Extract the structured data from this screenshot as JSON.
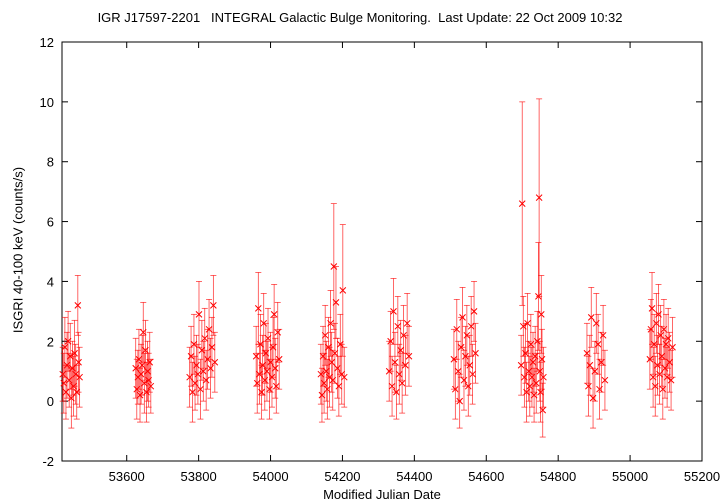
{
  "chart_data": {
    "type": "scatter",
    "title": "IGR J17597-2201   INTEGRAL Galactic Bulge Monitoring.  Last Update: 22 Oct 2009 10:32",
    "xlabel": "Modified Julian Date",
    "ylabel": "ISGRI 40-100 keV (counts/s)",
    "xlim": [
      53420,
      55200
    ],
    "ylim": [
      -2,
      12
    ],
    "x_ticks": [
      53600,
      53800,
      54000,
      54200,
      54400,
      54600,
      54800,
      55000,
      55200
    ],
    "y_ticks": [
      -2,
      0,
      2,
      4,
      6,
      8,
      10,
      12
    ],
    "grid": false,
    "marker": "x",
    "color": "#ff0000",
    "series": [
      {
        "points": [
          {
            "x": 53422,
            "y": 0.9,
            "err": 0.9
          },
          {
            "x": 53425,
            "y": 0.6,
            "err": 1.0
          },
          {
            "x": 53428,
            "y": 1.8,
            "err": 1.0
          },
          {
            "x": 53431,
            "y": 0.3,
            "err": 0.9
          },
          {
            "x": 53434,
            "y": 1.2,
            "err": 1.1
          },
          {
            "x": 53437,
            "y": 2.0,
            "err": 1.0
          },
          {
            "x": 53440,
            "y": 0.7,
            "err": 0.9
          },
          {
            "x": 53443,
            "y": 1.5,
            "err": 1.1
          },
          {
            "x": 53446,
            "y": 0.1,
            "err": 1.0
          },
          {
            "x": 53449,
            "y": 1.1,
            "err": 0.9
          },
          {
            "x": 53452,
            "y": 0.5,
            "err": 1.0
          },
          {
            "x": 53455,
            "y": 1.6,
            "err": 1.1
          },
          {
            "x": 53458,
            "y": 0.9,
            "err": 1.0
          },
          {
            "x": 53461,
            "y": 0.3,
            "err": 0.9
          },
          {
            "x": 53464,
            "y": 3.2,
            "err": 1.0
          },
          {
            "x": 53466,
            "y": 1.3,
            "err": 1.0
          },
          {
            "x": 53469,
            "y": 0.8,
            "err": 1.0
          },
          {
            "x": 53625,
            "y": 1.1,
            "err": 1.0
          },
          {
            "x": 53628,
            "y": 0.4,
            "err": 1.0
          },
          {
            "x": 53631,
            "y": 0.8,
            "err": 0.9
          },
          {
            "x": 53634,
            "y": 1.4,
            "err": 1.0
          },
          {
            "x": 53637,
            "y": 0.2,
            "err": 0.9
          },
          {
            "x": 53640,
            "y": 0.9,
            "err": 1.0
          },
          {
            "x": 53643,
            "y": 1.2,
            "err": 1.0
          },
          {
            "x": 53646,
            "y": 2.3,
            "err": 1.0
          },
          {
            "x": 53649,
            "y": 0.6,
            "err": 1.0
          },
          {
            "x": 53652,
            "y": 1.7,
            "err": 1.0
          },
          {
            "x": 53655,
            "y": 0.3,
            "err": 1.0
          },
          {
            "x": 53658,
            "y": 1.0,
            "err": 1.0
          },
          {
            "x": 53661,
            "y": 0.7,
            "err": 0.9
          },
          {
            "x": 53664,
            "y": 1.3,
            "err": 1.0
          },
          {
            "x": 53667,
            "y": 0.5,
            "err": 0.9
          },
          {
            "x": 53775,
            "y": 0.8,
            "err": 1.0
          },
          {
            "x": 53779,
            "y": 1.5,
            "err": 1.0
          },
          {
            "x": 53783,
            "y": 0.3,
            "err": 1.0
          },
          {
            "x": 53787,
            "y": 1.9,
            "err": 1.0
          },
          {
            "x": 53790,
            "y": 0.6,
            "err": 0.9
          },
          {
            "x": 53794,
            "y": 1.2,
            "err": 1.0
          },
          {
            "x": 53798,
            "y": 0.9,
            "err": 1.0
          },
          {
            "x": 53801,
            "y": 2.9,
            "err": 1.1
          },
          {
            "x": 53805,
            "y": 0.4,
            "err": 1.0
          },
          {
            "x": 53809,
            "y": 1.7,
            "err": 1.0
          },
          {
            "x": 53813,
            "y": 1.0,
            "err": 1.0
          },
          {
            "x": 53817,
            "y": 2.1,
            "err": 1.0
          },
          {
            "x": 53821,
            "y": 0.7,
            "err": 1.0
          },
          {
            "x": 53825,
            "y": 1.4,
            "err": 1.0
          },
          {
            "x": 53829,
            "y": 2.4,
            "err": 1.0
          },
          {
            "x": 53833,
            "y": 1.1,
            "err": 1.0
          },
          {
            "x": 53837,
            "y": 1.8,
            "err": 1.0
          },
          {
            "x": 53841,
            "y": 3.2,
            "err": 1.0
          },
          {
            "x": 53845,
            "y": 1.3,
            "err": 1.0
          },
          {
            "x": 53960,
            "y": 1.5,
            "err": 1.0
          },
          {
            "x": 53963,
            "y": 0.6,
            "err": 1.0
          },
          {
            "x": 53966,
            "y": 3.1,
            "err": 1.2
          },
          {
            "x": 53969,
            "y": 0.9,
            "err": 1.0
          },
          {
            "x": 53972,
            "y": 1.9,
            "err": 1.0
          },
          {
            "x": 53975,
            "y": 0.3,
            "err": 0.9
          },
          {
            "x": 53978,
            "y": 1.2,
            "err": 1.0
          },
          {
            "x": 53981,
            "y": 2.6,
            "err": 1.0
          },
          {
            "x": 53984,
            "y": 0.7,
            "err": 1.0
          },
          {
            "x": 53987,
            "y": 1.6,
            "err": 1.0
          },
          {
            "x": 53990,
            "y": 1.0,
            "err": 1.0
          },
          {
            "x": 53993,
            "y": 2.1,
            "err": 1.0
          },
          {
            "x": 53997,
            "y": 0.4,
            "err": 1.0
          },
          {
            "x": 54000,
            "y": 1.3,
            "err": 1.0
          },
          {
            "x": 54004,
            "y": 0.8,
            "err": 1.0
          },
          {
            "x": 54007,
            "y": 1.8,
            "err": 1.0
          },
          {
            "x": 54010,
            "y": 2.9,
            "err": 1.0
          },
          {
            "x": 54013,
            "y": 1.1,
            "err": 1.0
          },
          {
            "x": 54016,
            "y": 0.5,
            "err": 0.9
          },
          {
            "x": 54020,
            "y": 2.3,
            "err": 1.0
          },
          {
            "x": 54024,
            "y": 1.4,
            "err": 1.0
          },
          {
            "x": 54140,
            "y": 0.9,
            "err": 1.0
          },
          {
            "x": 54143,
            "y": 0.2,
            "err": 0.9
          },
          {
            "x": 54146,
            "y": 1.5,
            "err": 1.0
          },
          {
            "x": 54149,
            "y": 0.6,
            "err": 1.0
          },
          {
            "x": 54152,
            "y": 2.2,
            "err": 1.0
          },
          {
            "x": 54155,
            "y": 1.0,
            "err": 1.0
          },
          {
            "x": 54158,
            "y": 0.4,
            "err": 1.0
          },
          {
            "x": 54161,
            "y": 1.8,
            "err": 1.0
          },
          {
            "x": 54164,
            "y": 0.8,
            "err": 1.0
          },
          {
            "x": 54167,
            "y": 2.6,
            "err": 1.1
          },
          {
            "x": 54170,
            "y": 1.3,
            "err": 1.0
          },
          {
            "x": 54173,
            "y": 0.7,
            "err": 1.0
          },
          {
            "x": 54176,
            "y": 4.5,
            "err": 2.1
          },
          {
            "x": 54179,
            "y": 1.6,
            "err": 1.0
          },
          {
            "x": 54182,
            "y": 3.3,
            "err": 1.2
          },
          {
            "x": 54186,
            "y": 1.1,
            "err": 1.0
          },
          {
            "x": 54190,
            "y": 0.5,
            "err": 1.0
          },
          {
            "x": 54194,
            "y": 1.9,
            "err": 1.0
          },
          {
            "x": 54198,
            "y": 0.9,
            "err": 1.0
          },
          {
            "x": 54201,
            "y": 3.7,
            "err": 2.2
          },
          {
            "x": 54205,
            "y": 0.8,
            "err": 1.0
          },
          {
            "x": 54330,
            "y": 1.0,
            "err": 1.0
          },
          {
            "x": 54334,
            "y": 2.0,
            "err": 1.0
          },
          {
            "x": 54338,
            "y": 0.5,
            "err": 1.0
          },
          {
            "x": 54342,
            "y": 3.0,
            "err": 1.1
          },
          {
            "x": 54346,
            "y": 1.3,
            "err": 1.0
          },
          {
            "x": 54350,
            "y": 0.3,
            "err": 0.9
          },
          {
            "x": 54354,
            "y": 2.5,
            "err": 1.0
          },
          {
            "x": 54358,
            "y": 0.9,
            "err": 1.0
          },
          {
            "x": 54362,
            "y": 1.7,
            "err": 1.0
          },
          {
            "x": 54366,
            "y": 0.6,
            "err": 1.0
          },
          {
            "x": 54370,
            "y": 2.2,
            "err": 1.0
          },
          {
            "x": 54375,
            "y": 1.2,
            "err": 1.0
          },
          {
            "x": 54380,
            "y": 2.6,
            "err": 1.0
          },
          {
            "x": 54385,
            "y": 1.5,
            "err": 1.0
          },
          {
            "x": 54510,
            "y": 1.4,
            "err": 1.0
          },
          {
            "x": 54514,
            "y": 0.4,
            "err": 1.0
          },
          {
            "x": 54518,
            "y": 2.4,
            "err": 1.0
          },
          {
            "x": 54522,
            "y": 1.0,
            "err": 1.0
          },
          {
            "x": 54526,
            "y": 0.0,
            "err": 0.9
          },
          {
            "x": 54530,
            "y": 1.8,
            "err": 1.0
          },
          {
            "x": 54534,
            "y": 2.8,
            "err": 1.0
          },
          {
            "x": 54538,
            "y": 0.7,
            "err": 1.0
          },
          {
            "x": 54542,
            "y": 1.5,
            "err": 1.0
          },
          {
            "x": 54546,
            "y": 2.2,
            "err": 1.0
          },
          {
            "x": 54550,
            "y": 0.5,
            "err": 1.0
          },
          {
            "x": 54554,
            "y": 1.2,
            "err": 1.0
          },
          {
            "x": 54558,
            "y": 2.5,
            "err": 1.0
          },
          {
            "x": 54562,
            "y": 0.9,
            "err": 1.0
          },
          {
            "x": 54566,
            "y": 3.0,
            "err": 1.0
          },
          {
            "x": 54570,
            "y": 1.6,
            "err": 1.0
          },
          {
            "x": 54697,
            "y": 1.2,
            "err": 1.0
          },
          {
            "x": 54700,
            "y": 6.6,
            "err": 3.4
          },
          {
            "x": 54703,
            "y": 2.5,
            "err": 1.0
          },
          {
            "x": 54706,
            "y": 0.8,
            "err": 1.0
          },
          {
            "x": 54709,
            "y": 1.6,
            "err": 1.0
          },
          {
            "x": 54712,
            "y": 0.3,
            "err": 1.0
          },
          {
            "x": 54715,
            "y": 2.6,
            "err": 1.0
          },
          {
            "x": 54718,
            "y": 1.0,
            "err": 1.0
          },
          {
            "x": 54721,
            "y": 0.5,
            "err": 1.0
          },
          {
            "x": 54724,
            "y": 1.9,
            "err": 1.0
          },
          {
            "x": 54727,
            "y": 0.8,
            "err": 1.0
          },
          {
            "x": 54730,
            "y": 1.3,
            "err": 1.0
          },
          {
            "x": 54733,
            "y": 0.2,
            "err": 0.9
          },
          {
            "x": 54736,
            "y": 1.5,
            "err": 1.0
          },
          {
            "x": 54739,
            "y": 0.6,
            "err": 1.0
          },
          {
            "x": 54742,
            "y": 2.0,
            "err": 1.0
          },
          {
            "x": 54745,
            "y": 3.5,
            "err": 1.8
          },
          {
            "x": 54747,
            "y": 6.8,
            "err": 3.3
          },
          {
            "x": 54749,
            "y": 1.0,
            "err": 1.0
          },
          {
            "x": 54751,
            "y": 0.3,
            "err": 1.0
          },
          {
            "x": 54753,
            "y": 2.9,
            "err": 1.3
          },
          {
            "x": 54755,
            "y": 1.4,
            "err": 1.0
          },
          {
            "x": 54757,
            "y": -0.3,
            "err": 0.9
          },
          {
            "x": 54759,
            "y": 0.8,
            "err": 1.0
          },
          {
            "x": 54880,
            "y": 1.6,
            "err": 1.0
          },
          {
            "x": 54884,
            "y": 0.5,
            "err": 1.0
          },
          {
            "x": 54888,
            "y": 1.2,
            "err": 1.0
          },
          {
            "x": 54892,
            "y": 2.8,
            "err": 1.0
          },
          {
            "x": 54897,
            "y": 0.1,
            "err": 1.0
          },
          {
            "x": 54902,
            "y": 1.0,
            "err": 1.0
          },
          {
            "x": 54906,
            "y": 2.6,
            "err": 1.0
          },
          {
            "x": 54911,
            "y": 1.9,
            "err": 1.0
          },
          {
            "x": 54915,
            "y": 0.4,
            "err": 1.0
          },
          {
            "x": 54920,
            "y": 1.3,
            "err": 1.0
          },
          {
            "x": 54925,
            "y": 2.2,
            "err": 1.0
          },
          {
            "x": 54930,
            "y": 0.7,
            "err": 1.0
          },
          {
            "x": 55055,
            "y": 1.4,
            "err": 1.0
          },
          {
            "x": 55058,
            "y": 2.4,
            "err": 1.0
          },
          {
            "x": 55061,
            "y": 3.1,
            "err": 1.2
          },
          {
            "x": 55064,
            "y": 0.8,
            "err": 1.0
          },
          {
            "x": 55067,
            "y": 1.9,
            "err": 1.0
          },
          {
            "x": 55070,
            "y": 0.5,
            "err": 1.0
          },
          {
            "x": 55073,
            "y": 2.6,
            "err": 1.0
          },
          {
            "x": 55076,
            "y": 1.2,
            "err": 1.0
          },
          {
            "x": 55079,
            "y": 2.9,
            "err": 1.0
          },
          {
            "x": 55082,
            "y": 0.9,
            "err": 1.0
          },
          {
            "x": 55085,
            "y": 2.2,
            "err": 1.0
          },
          {
            "x": 55088,
            "y": 1.5,
            "err": 1.0
          },
          {
            "x": 55091,
            "y": 0.4,
            "err": 1.0
          },
          {
            "x": 55094,
            "y": 2.4,
            "err": 1.0
          },
          {
            "x": 55097,
            "y": 1.1,
            "err": 1.0
          },
          {
            "x": 55100,
            "y": 1.9,
            "err": 1.0
          },
          {
            "x": 55103,
            "y": 0.8,
            "err": 1.0
          },
          {
            "x": 55106,
            "y": 2.1,
            "err": 1.0
          },
          {
            "x": 55110,
            "y": 1.3,
            "err": 1.0
          },
          {
            "x": 55114,
            "y": 0.7,
            "err": 1.0
          },
          {
            "x": 55118,
            "y": 1.8,
            "err": 1.0
          }
        ]
      }
    ]
  }
}
